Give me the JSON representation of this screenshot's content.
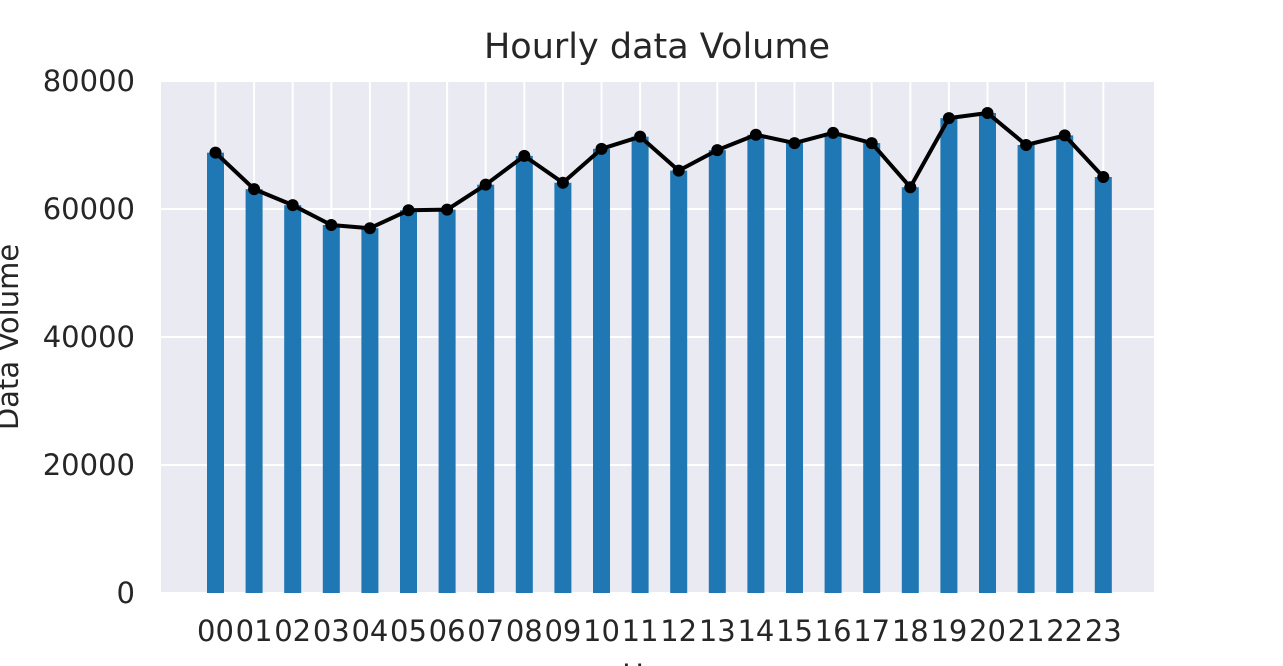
{
  "chart_data": {
    "type": "bar",
    "title": "Hourly data Volume",
    "xlabel": "Hour",
    "ylabel": "Data Volume",
    "ylim": [
      0,
      80000
    ],
    "yticks": [
      "0",
      "20000",
      "40000",
      "60000",
      "80000"
    ],
    "categories": [
      "00",
      "01",
      "02",
      "03",
      "04",
      "05",
      "06",
      "07",
      "08",
      "09",
      "10",
      "11",
      "12",
      "13",
      "14",
      "15",
      "16",
      "17",
      "18",
      "19",
      "20",
      "21",
      "22",
      "23"
    ],
    "values": [
      68800,
      63100,
      60600,
      57500,
      57000,
      59800,
      59900,
      63800,
      68300,
      64100,
      69400,
      71300,
      66000,
      69200,
      71600,
      70300,
      71900,
      70300,
      63400,
      74200,
      75000,
      70000,
      71500,
      65000
    ],
    "line_overlay": true,
    "grid": true,
    "colors": {
      "bar": "#1f77b4",
      "line": "#000000",
      "plot_bg": "#eaeaf2",
      "grid": "#ffffff"
    }
  }
}
